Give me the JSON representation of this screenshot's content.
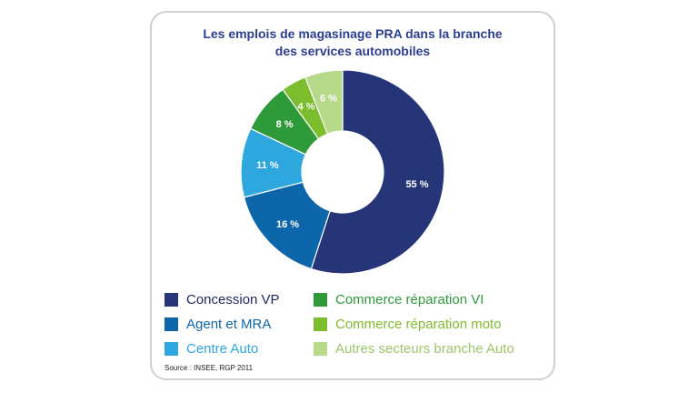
{
  "chart_data": {
    "type": "pie",
    "title_line1": "Les emplois de magasinage PRA dans la branche",
    "title_line2": "des services automobiles",
    "series": [
      {
        "name": "Concession VP",
        "value": 55,
        "label": "55 %",
        "color": "#263478"
      },
      {
        "name": "Agent et MRA",
        "value": 16,
        "label": "16 %",
        "color": "#0e66aa"
      },
      {
        "name": "Centre Auto",
        "value": 11,
        "label": "11 %",
        "color": "#2ea7df"
      },
      {
        "name": "Commerce réparation VI",
        "value": 8,
        "label": "8 %",
        "color": "#2f9a3a"
      },
      {
        "name": "Commerce réparation moto",
        "value": 4,
        "label": "4 %",
        "color": "#7bbd2d"
      },
      {
        "name": "Autres secteurs branche Auto",
        "value": 6,
        "label": "6 %",
        "color": "#b7d98a"
      }
    ],
    "source": "Source : INSEE, RGP 2011"
  }
}
